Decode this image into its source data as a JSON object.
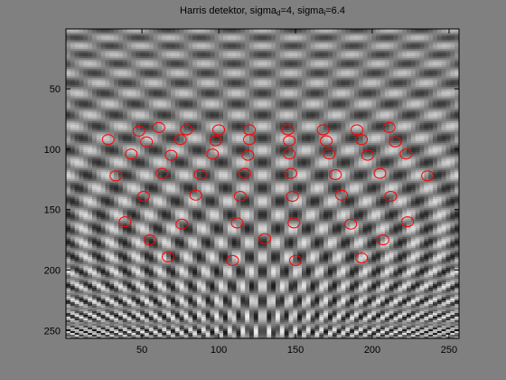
{
  "chart_data": {
    "type": "scatter",
    "title": {
      "prefix": "Harris detektor, sigma",
      "sub1": "d",
      "mid": "=4, sigma",
      "sub2": "i",
      "suffix": "=6.4"
    },
    "image": {
      "width": 256,
      "height": 256,
      "colormap": "gray"
    },
    "xlim": [
      0.5,
      256.5
    ],
    "ylim": [
      0.5,
      256.5
    ],
    "y_reversed": true,
    "xticks": [
      50,
      100,
      150,
      200,
      250
    ],
    "yticks": [
      50,
      100,
      150,
      200,
      250
    ],
    "marker_color": "#ff0000",
    "marker": "circle",
    "points": [
      {
        "x": 28,
        "y": 92
      },
      {
        "x": 33,
        "y": 122
      },
      {
        "x": 39,
        "y": 160
      },
      {
        "x": 43,
        "y": 104
      },
      {
        "x": 48,
        "y": 85
      },
      {
        "x": 51,
        "y": 139
      },
      {
        "x": 53,
        "y": 94
      },
      {
        "x": 55,
        "y": 175
      },
      {
        "x": 61,
        "y": 82
      },
      {
        "x": 63,
        "y": 120
      },
      {
        "x": 67,
        "y": 189
      },
      {
        "x": 69,
        "y": 105
      },
      {
        "x": 75,
        "y": 92
      },
      {
        "x": 76,
        "y": 162
      },
      {
        "x": 79,
        "y": 84
      },
      {
        "x": 85,
        "y": 138
      },
      {
        "x": 88,
        "y": 121
      },
      {
        "x": 96,
        "y": 104
      },
      {
        "x": 98,
        "y": 93
      },
      {
        "x": 100,
        "y": 84
      },
      {
        "x": 109,
        "y": 192
      },
      {
        "x": 112,
        "y": 161
      },
      {
        "x": 114,
        "y": 139
      },
      {
        "x": 117,
        "y": 120
      },
      {
        "x": 119,
        "y": 105
      },
      {
        "x": 120,
        "y": 92
      },
      {
        "x": 120,
        "y": 84
      },
      {
        "x": 130,
        "y": 174
      },
      {
        "x": 145,
        "y": 84
      },
      {
        "x": 146,
        "y": 93
      },
      {
        "x": 146,
        "y": 104
      },
      {
        "x": 147,
        "y": 120
      },
      {
        "x": 148,
        "y": 139
      },
      {
        "x": 149,
        "y": 161
      },
      {
        "x": 150,
        "y": 192
      },
      {
        "x": 168,
        "y": 84
      },
      {
        "x": 170,
        "y": 93
      },
      {
        "x": 172,
        "y": 104
      },
      {
        "x": 176,
        "y": 121
      },
      {
        "x": 180,
        "y": 138
      },
      {
        "x": 186,
        "y": 162
      },
      {
        "x": 190,
        "y": 84
      },
      {
        "x": 193,
        "y": 92
      },
      {
        "x": 193,
        "y": 190
      },
      {
        "x": 197,
        "y": 105
      },
      {
        "x": 205,
        "y": 120
      },
      {
        "x": 207,
        "y": 175
      },
      {
        "x": 211,
        "y": 82
      },
      {
        "x": 212,
        "y": 139
      },
      {
        "x": 215,
        "y": 94
      },
      {
        "x": 222,
        "y": 104
      },
      {
        "x": 223,
        "y": 160
      },
      {
        "x": 236,
        "y": 122
      }
    ]
  }
}
